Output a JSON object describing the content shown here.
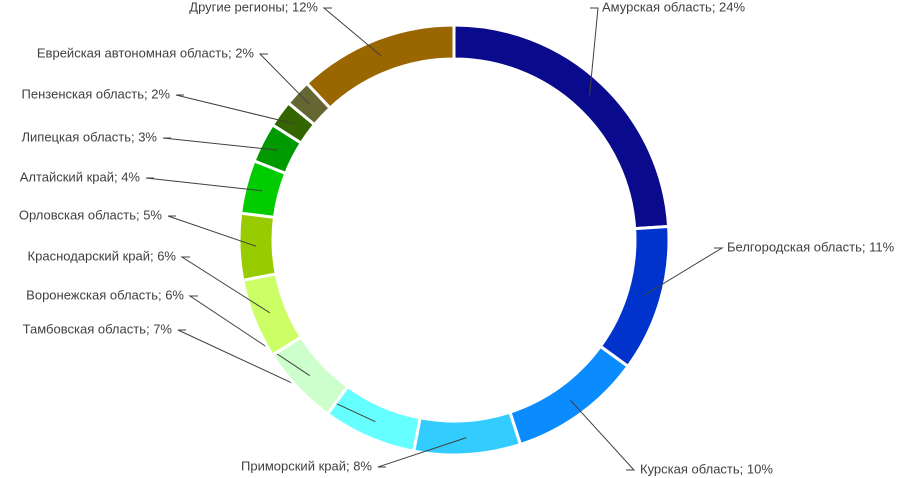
{
  "chart_data": {
    "type": "donut",
    "values": [
      24,
      11,
      10,
      8,
      7,
      6,
      6,
      5,
      4,
      3,
      2,
      2,
      12
    ],
    "value_labels": [
      "Амурская область; 24%",
      "Белгородская область; 11%",
      "Курская область; 10%",
      "Приморский край; 8%",
      "Тамбовская область; 7%",
      "Воронежская область; 6%",
      "Краснодарский край; 6%",
      "Орловская область; 5%",
      "Алтайский край; 4%",
      "Липецкая область; 3%",
      "Пензенская область; 2%",
      "Еврейская автономная область; 2%",
      "Другие регионы; 12%"
    ],
    "colors": [
      "#0a0a8c",
      "#0033cc",
      "#0a8cff",
      "#33ccff",
      "#66ffff",
      "#ccffcc",
      "#ccff66",
      "#99cc00",
      "#00cc00",
      "#009900",
      "#336600",
      "#666633",
      "#996600"
    ]
  }
}
